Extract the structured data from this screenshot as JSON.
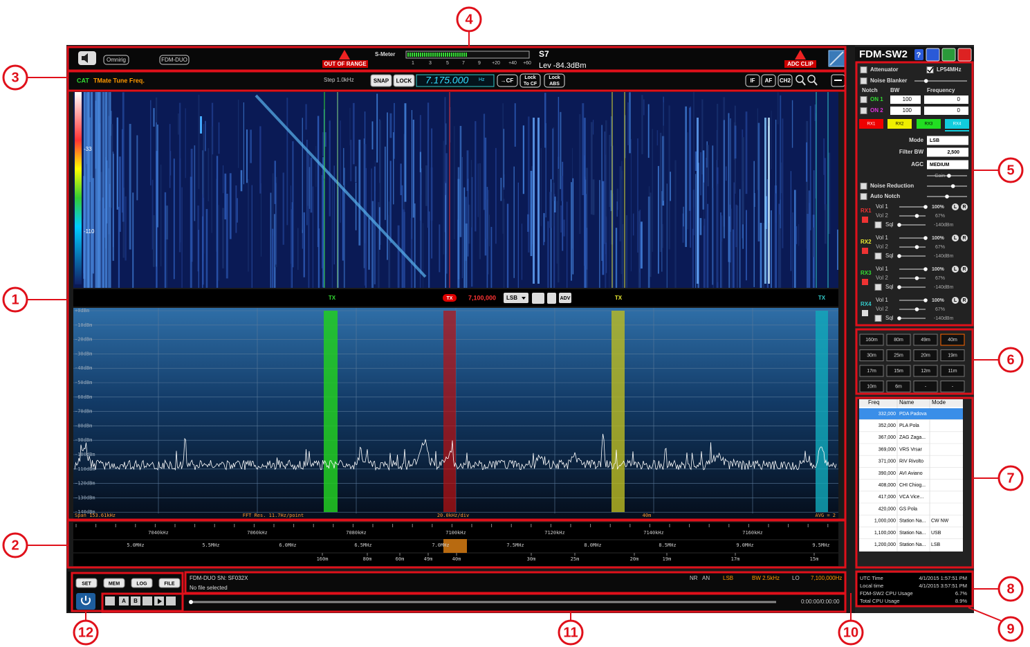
{
  "callouts": [
    "1",
    "2",
    "3",
    "4",
    "5",
    "6",
    "7",
    "8",
    "9",
    "10",
    "11",
    "12"
  ],
  "top_bar": {
    "buttons": [
      "Omnirig",
      "FDM-DUO"
    ],
    "out_of_range": "OUT OF RANGE",
    "smeter_label": "S-Meter",
    "smeter_scale": [
      "1",
      "3",
      "5",
      "7",
      "9",
      "+20",
      "+40",
      "+60"
    ],
    "s_value": "S7",
    "level": "Lev -84.3dBm",
    "adc_clip": "ADC CLIP"
  },
  "tuning_bar": {
    "cat": "CAT",
    "tmate": "TMate Tune Freq.",
    "step": "Step 1.0kHz",
    "snap": "SNAP",
    "lock": "LOCK",
    "frequency": "7.175.000",
    "unit": "Hz",
    "cf": "→CF",
    "lock_to_cf": [
      "Lock",
      "To CF"
    ],
    "lock_abs": [
      "Lock",
      "ABS"
    ],
    "buttons": [
      "IF",
      "AF",
      "CH2"
    ]
  },
  "waterfall": {
    "scale_labels": [
      "-33",
      "-110"
    ]
  },
  "markers": {
    "tx_labels": [
      "TX",
      "TX",
      "TX"
    ],
    "active_tx": "TX",
    "frequency": "7,100,000",
    "mode": "LSB",
    "adv": "ADV"
  },
  "spectrum": {
    "db_labels": [
      "+0dBm",
      "-10dBm",
      "-20dBm",
      "-30dBm",
      "-40dBm",
      "-50dBm",
      "-60dBm",
      "-70dBm",
      "-80dBm",
      "-90dBm",
      "-100dBm",
      "-110dBm",
      "-120dBm",
      "-130dBm",
      "-140dBm"
    ],
    "footer": [
      "Span 153.61kHz",
      "FFT Res. 11.7Hz/point",
      "20.0kHz/div",
      "40m",
      "AVG = 2"
    ]
  },
  "band_scale": {
    "khz": [
      "7040kHz",
      "7060kHz",
      "7080kHz",
      "7100kHz",
      "7120kHz",
      "7140kHz",
      "7160kHz"
    ],
    "mhz": [
      "5.0MHz",
      "5.5MHz",
      "6.0MHz",
      "6.5MHz",
      "7.0MHz",
      "7.5MHz",
      "8.0MHz",
      "8.5MHz",
      "9.0MHz",
      "9.5MHz"
    ],
    "bands": [
      "160m",
      "80m",
      "60m",
      "49m",
      "40m",
      "30m",
      "25m",
      "20m",
      "19m",
      "17m",
      "15m"
    ]
  },
  "right_panel": {
    "title": "FDM-SW2",
    "help": "?",
    "attenuator": "Attenuator",
    "lp54": "LP54MHz",
    "noise_blanker": "Noise Blanker",
    "notch_headers": [
      "Notch",
      "BW",
      "Frequency"
    ],
    "notches": [
      {
        "label": "ON 1",
        "bw": "100",
        "freq": "0"
      },
      {
        "label": "ON 2",
        "bw": "100",
        "freq": "0"
      }
    ],
    "rx_tabs": [
      "RX1",
      "RX2",
      "RX3",
      "RX4"
    ],
    "mode_label": "Mode",
    "mode": "LSB",
    "filter_bw_label": "Filter BW",
    "filter_bw": "2,500",
    "agc_label": "AGC",
    "agc": "MEDIUM",
    "gain": "Gain",
    "noise_reduction": "Noise Reduction",
    "auto_notch": "Auto Notch",
    "receivers": [
      {
        "name": "RX1",
        "vol1": "Vol 1",
        "vol1_value": "100%",
        "vol2": "Vol 2",
        "vol2_value": "67%",
        "sql": "Sql",
        "sql_value": "-140dBm"
      },
      {
        "name": "RX2",
        "vol1": "Vol 1",
        "vol1_value": "100%",
        "vol2": "Vol 2",
        "vol2_value": "67%",
        "sql": "Sql",
        "sql_value": "-140dBm"
      },
      {
        "name": "RX3",
        "vol1": "Vol 1",
        "vol1_value": "100%",
        "vol2": "Vol 2",
        "vol2_value": "67%",
        "sql": "Sql",
        "sql_value": "-140dBm"
      },
      {
        "name": "RX4",
        "vol1": "Vol 1",
        "vol1_value": "100%",
        "vol2": "Vol 2",
        "vol2_value": "67%",
        "sql": "Sql",
        "sql_value": "-140dBm"
      }
    ],
    "lr": [
      "L",
      "R"
    ]
  },
  "bands_grid": [
    "160m",
    "80m",
    "49m",
    "40m",
    "30m",
    "25m",
    "20m",
    "19m",
    "17m",
    "15m",
    "12m",
    "11m",
    "10m",
    "6m",
    "-",
    "-"
  ],
  "memory": {
    "headers": [
      "Freq",
      "Name",
      "Mode"
    ],
    "rows": [
      [
        "332,000",
        "PDA Padova"
      ],
      [
        "352,000",
        "PLA Pola"
      ],
      [
        "367,000",
        "ZAG Zaga..."
      ],
      [
        "369,000",
        "VRS Vrsar"
      ],
      [
        "371,000",
        "RIV Rivolto"
      ],
      [
        "390,000",
        "AVI Aviano"
      ],
      [
        "408,000",
        "CHI Chiog..."
      ],
      [
        "417,000",
        "VCA Vice..."
      ],
      [
        "420,000",
        "GS Pola"
      ],
      [
        "1,000,000",
        "Station Na...",
        "CW NW"
      ],
      [
        "1,100,000",
        "Station Na...",
        "USB"
      ],
      [
        "1,200,000",
        "Station Na...",
        "LSB"
      ]
    ]
  },
  "status": [
    [
      "UTC Time",
      "4/1/2015 1:57:51 PM"
    ],
    [
      "Local time",
      "4/1/2015 3:57:51 PM"
    ],
    [
      "FDM-SW2 CPU Usage",
      "6.7%"
    ],
    [
      "Total CPU Usage",
      "8.9%"
    ]
  ],
  "bottom": {
    "buttons": [
      "SET",
      "MEM",
      "LOG",
      "FILE"
    ],
    "device": "FDM-DUO SN: SF032X",
    "file": "No file selected",
    "nr": "NR",
    "an": "AN",
    "mode": "LSB",
    "bw": "BW 2.5kHz",
    "lo": "LO",
    "lo_freq": "7,100,000Hz",
    "time": "0:00:00/0:00:00",
    "play_buttons": [
      "A",
      "B"
    ]
  }
}
